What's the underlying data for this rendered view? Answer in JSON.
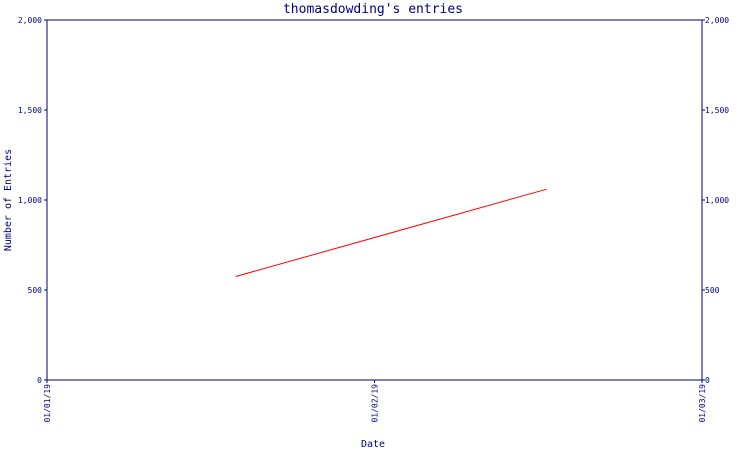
{
  "chart_data": {
    "type": "line",
    "title": "thomasdowding's entries",
    "xlabel": "Date",
    "ylabel": "Number of Entries",
    "x_ticks": [
      "01/01/19",
      "01/02/19",
      "01/03/19"
    ],
    "y_ticks": [
      0,
      500,
      1000,
      1500,
      2000
    ],
    "y_tick_labels": [
      "0",
      "500",
      "1,000",
      "1,500",
      "2,000"
    ],
    "ylim": [
      0,
      2000
    ],
    "y_axis_sides": "left and right",
    "grid": false,
    "series": [
      {
        "color": "#ff0000",
        "points": [
          {
            "x": "2019-01-18",
            "y": 575
          },
          {
            "x": "2019-02-15",
            "y": 1060
          }
        ]
      }
    ]
  }
}
